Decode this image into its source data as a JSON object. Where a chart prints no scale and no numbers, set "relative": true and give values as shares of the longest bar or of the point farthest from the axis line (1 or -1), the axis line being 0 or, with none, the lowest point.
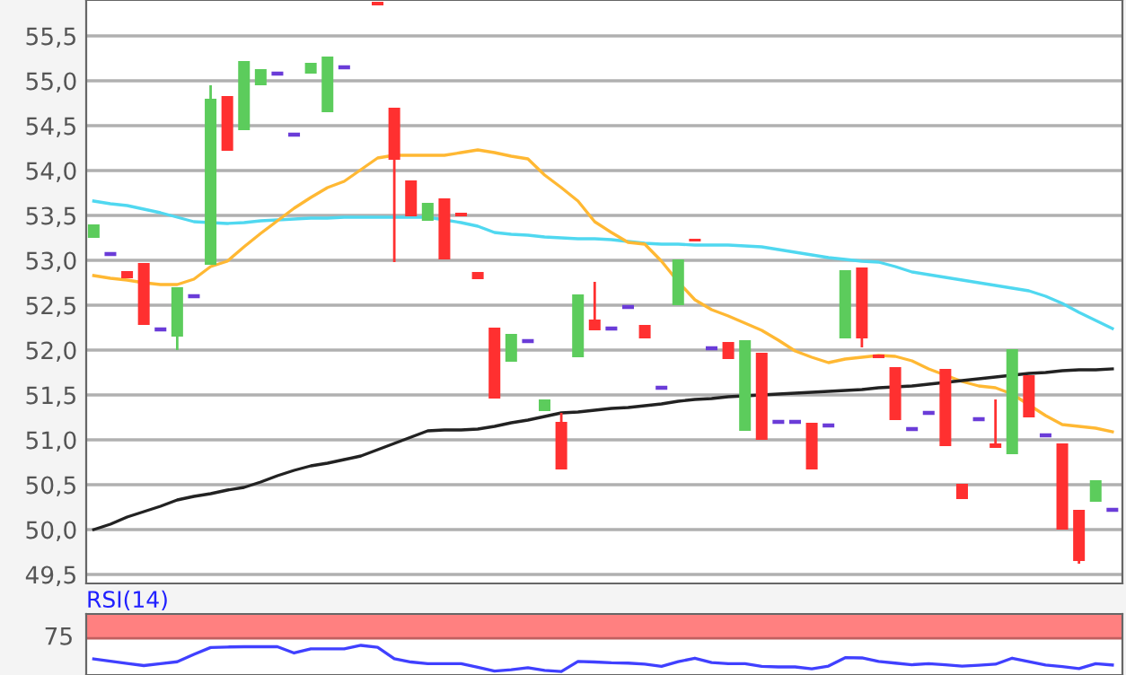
{
  "chart_data": [
    {
      "type": "candlestick",
      "categories": [
        null,
        null,
        null,
        null,
        null,
        null,
        null,
        null,
        null,
        null,
        null,
        null,
        null,
        null,
        null,
        null,
        null,
        null,
        null,
        null,
        null,
        null,
        null,
        null,
        null,
        null,
        null,
        null,
        null,
        null,
        null,
        null,
        null,
        null,
        null,
        null,
        null,
        null,
        null,
        null,
        null,
        null,
        null,
        null,
        null,
        null,
        null,
        null,
        null,
        null,
        null,
        null,
        null,
        null,
        null,
        null,
        null,
        null,
        null,
        null,
        null,
        null
      ],
      "ohlc": [
        [
          53.25,
          53.4,
          53.25,
          53.4
        ],
        [
          53.07,
          53.07,
          53.07,
          53.07
        ],
        [
          52.88,
          52.88,
          52.8,
          52.8
        ],
        [
          52.97,
          52.97,
          52.28,
          52.28
        ],
        [
          52.23,
          52.23,
          52.23,
          52.23
        ],
        [
          52.15,
          52.7,
          52.0,
          52.7
        ],
        [
          52.6,
          52.6,
          52.6,
          52.6
        ],
        [
          52.95,
          54.95,
          52.95,
          54.8
        ],
        [
          54.83,
          54.83,
          54.22,
          54.22
        ],
        [
          54.45,
          55.22,
          54.45,
          55.22
        ],
        [
          54.95,
          55.13,
          54.95,
          55.13
        ],
        [
          55.08,
          55.08,
          55.08,
          55.08
        ],
        [
          54.4,
          54.4,
          54.4,
          54.4
        ],
        [
          55.08,
          55.2,
          55.08,
          55.2
        ],
        [
          54.65,
          55.27,
          54.65,
          55.27
        ],
        [
          55.15,
          55.15,
          55.15,
          55.15
        ],
        null,
        [
          55.88,
          55.88,
          55.84,
          55.84
        ],
        [
          54.7,
          54.7,
          52.98,
          54.12
        ],
        [
          53.89,
          53.89,
          53.49,
          53.49
        ],
        [
          53.44,
          53.64,
          53.44,
          53.64
        ],
        [
          53.69,
          53.69,
          53.01,
          53.01
        ],
        [
          53.53,
          53.53,
          53.49,
          53.49
        ],
        [
          52.87,
          52.87,
          52.79,
          52.79
        ],
        [
          52.25,
          52.25,
          51.46,
          51.46
        ],
        [
          51.87,
          52.18,
          51.87,
          52.18
        ],
        [
          52.1,
          52.1,
          52.1,
          52.1
        ],
        [
          51.32,
          51.45,
          51.32,
          51.45
        ],
        [
          51.2,
          51.3,
          50.67,
          50.67
        ],
        [
          51.92,
          52.62,
          51.92,
          52.62
        ],
        [
          52.34,
          52.76,
          52.22,
          52.22
        ],
        [
          52.24,
          52.24,
          52.24,
          52.24
        ],
        [
          52.48,
          52.48,
          52.48,
          52.48
        ],
        [
          52.28,
          52.28,
          52.13,
          52.13
        ],
        [
          51.58,
          51.58,
          51.58,
          51.58
        ],
        [
          52.5,
          53.01,
          52.5,
          53.01
        ],
        [
          53.24,
          53.24,
          53.21,
          53.21
        ],
        [
          52.02,
          52.02,
          52.02,
          52.02
        ],
        [
          52.09,
          52.09,
          51.9,
          51.9
        ],
        [
          51.1,
          52.11,
          51.1,
          52.11
        ],
        [
          51.97,
          51.97,
          51.0,
          51.0
        ],
        [
          51.2,
          51.2,
          51.2,
          51.2
        ],
        [
          51.2,
          51.2,
          51.2,
          51.2
        ],
        [
          51.19,
          51.19,
          50.67,
          50.67
        ],
        [
          51.16,
          51.16,
          51.16,
          51.16
        ],
        [
          52.13,
          52.89,
          52.13,
          52.89
        ],
        [
          52.92,
          52.92,
          52.03,
          52.13
        ],
        [
          51.95,
          51.95,
          51.91,
          51.91
        ],
        [
          51.81,
          51.81,
          51.22,
          51.22
        ],
        [
          51.12,
          51.12,
          51.12,
          51.12
        ],
        [
          51.3,
          51.3,
          51.3,
          51.3
        ],
        [
          51.79,
          51.79,
          50.93,
          50.93
        ],
        [
          50.51,
          50.51,
          50.34,
          50.34
        ],
        [
          51.23,
          51.23,
          51.23,
          51.23
        ],
        [
          50.96,
          51.45,
          50.91,
          50.91
        ],
        [
          50.84,
          52.01,
          50.84,
          52.01
        ],
        [
          51.72,
          51.72,
          51.25,
          51.25
        ],
        [
          51.05,
          51.05,
          51.05,
          51.05
        ],
        [
          50.96,
          50.96,
          50.0,
          50.0
        ],
        [
          50.22,
          50.22,
          49.62,
          49.65
        ],
        [
          50.31,
          50.55,
          50.31,
          50.55
        ],
        [
          50.22,
          50.22,
          50.22,
          50.22
        ]
      ],
      "colors": [
        "#5ccc5c",
        "#6a3cd8",
        "#ff3030",
        "#ff3030",
        "#6a3cd8",
        "#5ccc5c",
        "#6a3cd8",
        "#5ccc5c",
        "#ff3030",
        "#5ccc5c",
        "#5ccc5c",
        "#6a3cd8",
        "#6a3cd8",
        "#5ccc5c",
        "#5ccc5c",
        "#6a3cd8",
        null,
        "#ff3030",
        "#ff3030",
        "#ff3030",
        "#5ccc5c",
        "#ff3030",
        "#ff3030",
        "#ff3030",
        "#ff3030",
        "#5ccc5c",
        "#6a3cd8",
        "#5ccc5c",
        "#ff3030",
        "#5ccc5c",
        "#ff3030",
        "#6a3cd8",
        "#6a3cd8",
        "#ff3030",
        "#6a3cd8",
        "#5ccc5c",
        "#ff3030",
        "#6a3cd8",
        "#ff3030",
        "#5ccc5c",
        "#ff3030",
        "#6a3cd8",
        "#6a3cd8",
        "#ff3030",
        "#6a3cd8",
        "#5ccc5c",
        "#ff3030",
        "#ff3030",
        "#ff3030",
        "#6a3cd8",
        "#6a3cd8",
        "#ff3030",
        "#ff3030",
        "#6a3cd8",
        "#ff3030",
        "#5ccc5c",
        "#ff3030",
        "#6a3cd8",
        "#ff3030",
        "#ff3030",
        "#5ccc5c",
        "#6a3cd8"
      ],
      "series": [
        {
          "type": "line",
          "color": "#50d8f0",
          "values": [
            53.66,
            53.63,
            53.61,
            53.57,
            53.53,
            53.48,
            53.43,
            53.42,
            53.41,
            53.42,
            53.44,
            53.45,
            53.46,
            53.47,
            53.47,
            53.48,
            53.48,
            53.48,
            53.48,
            53.48,
            53.48,
            53.45,
            53.42,
            53.38,
            53.31,
            53.29,
            53.28,
            53.26,
            53.25,
            53.24,
            53.24,
            53.23,
            53.21,
            53.19,
            53.18,
            53.18,
            53.17,
            53.17,
            53.17,
            53.16,
            53.15,
            53.12,
            53.09,
            53.06,
            53.03,
            53.01,
            52.99,
            52.98,
            52.93,
            52.87,
            52.84,
            52.81,
            52.78,
            52.75,
            52.72,
            52.69,
            52.66,
            52.6,
            52.52,
            52.42,
            52.33,
            52.24
          ]
        },
        {
          "type": "line",
          "color": "#ffb833",
          "values": [
            52.83,
            52.8,
            52.78,
            52.75,
            52.73,
            52.73,
            52.79,
            52.93,
            52.99,
            53.15,
            53.3,
            53.44,
            53.58,
            53.7,
            53.81,
            53.88,
            54.01,
            54.14,
            54.17,
            54.17,
            54.17,
            54.17,
            54.2,
            54.23,
            54.2,
            54.16,
            54.13,
            53.95,
            53.81,
            53.66,
            53.43,
            53.31,
            53.2,
            53.18,
            52.99,
            52.76,
            52.56,
            52.45,
            52.38,
            52.3,
            52.22,
            52.11,
            51.99,
            51.92,
            51.86,
            51.9,
            51.92,
            51.94,
            51.93,
            51.88,
            51.79,
            51.72,
            51.65,
            51.6,
            51.58,
            51.51,
            51.39,
            51.27,
            51.17,
            51.15,
            51.13,
            51.09
          ]
        },
        {
          "type": "line",
          "color": "#222222",
          "values": [
            50.0,
            50.06,
            50.14,
            50.2,
            50.26,
            50.33,
            50.37,
            50.4,
            50.44,
            50.47,
            50.53,
            50.6,
            50.66,
            50.71,
            50.74,
            50.78,
            50.82,
            50.89,
            50.96,
            51.03,
            51.1,
            51.11,
            51.11,
            51.12,
            51.15,
            51.19,
            51.22,
            51.26,
            51.3,
            51.31,
            51.33,
            51.35,
            51.36,
            51.38,
            51.4,
            51.43,
            51.45,
            51.46,
            51.48,
            51.49,
            51.5,
            51.51,
            51.52,
            51.53,
            51.54,
            51.55,
            51.56,
            51.58,
            51.59,
            51.6,
            51.62,
            51.64,
            51.66,
            51.68,
            51.7,
            51.72,
            51.74,
            51.75,
            51.77,
            51.78,
            51.78,
            51.79
          ]
        }
      ],
      "ylim": [
        49.4,
        55.9
      ],
      "yticks": [
        {
          "value": 49.5,
          "label": "49,5"
        },
        {
          "value": 50.0,
          "label": "50,0"
        },
        {
          "value": 50.5,
          "label": "50,5"
        },
        {
          "value": 51.0,
          "label": "51,0"
        },
        {
          "value": 51.5,
          "label": "51,5"
        },
        {
          "value": 52.0,
          "label": "52,0"
        },
        {
          "value": 52.5,
          "label": "52,5"
        },
        {
          "value": 53.0,
          "label": "53,0"
        },
        {
          "value": 53.5,
          "label": "53,5"
        },
        {
          "value": 54.0,
          "label": "54,0"
        },
        {
          "value": 54.5,
          "label": "54,5"
        },
        {
          "value": 55.0,
          "label": "55,0"
        },
        {
          "value": 55.5,
          "label": "55,5"
        }
      ],
      "grid": "y",
      "tick_labels": "y"
    },
    {
      "type": "line",
      "title": "RSI(14)",
      "relative": true,
      "categories": [
        null,
        null,
        null,
        null,
        null,
        null,
        null,
        null,
        null,
        null,
        null,
        null,
        null,
        null,
        null,
        null,
        null,
        null,
        null,
        null,
        null,
        null,
        null,
        null,
        null,
        null,
        null,
        null,
        null,
        null,
        null,
        null,
        null,
        null,
        null,
        null,
        null,
        null,
        null,
        null,
        null,
        null,
        null,
        null,
        null,
        null,
        null,
        null,
        null,
        null,
        null,
        null,
        null,
        null,
        null,
        null,
        null,
        null,
        null,
        null,
        null,
        null
      ],
      "series": [
        {
          "color": "#4040ff",
          "values": [
            0.5,
            0.42,
            0.34,
            0.26,
            0.33,
            0.4,
            0.67,
            0.92,
            0.94,
            0.95,
            0.95,
            0.95,
            0.72,
            0.87,
            0.87,
            0.87,
            1.0,
            0.93,
            0.51,
            0.39,
            0.33,
            0.33,
            0.33,
            0.2,
            0.06,
            0.11,
            0.18,
            0.08,
            0.04,
            0.41,
            0.39,
            0.36,
            0.35,
            0.31,
            0.23,
            0.4,
            0.53,
            0.37,
            0.33,
            0.33,
            0.23,
            0.21,
            0.21,
            0.14,
            0.24,
            0.55,
            0.54,
            0.41,
            0.35,
            0.29,
            0.33,
            0.29,
            0.24,
            0.27,
            0.31,
            0.53,
            0.4,
            0.28,
            0.22,
            0.15,
            0.33,
            0.28
          ]
        }
      ],
      "bands": [
        {
          "axis": "y",
          "from": 1.26,
          "to": 2.15,
          "label": "75",
          "color": "#ff8080"
        }
      ]
    }
  ]
}
